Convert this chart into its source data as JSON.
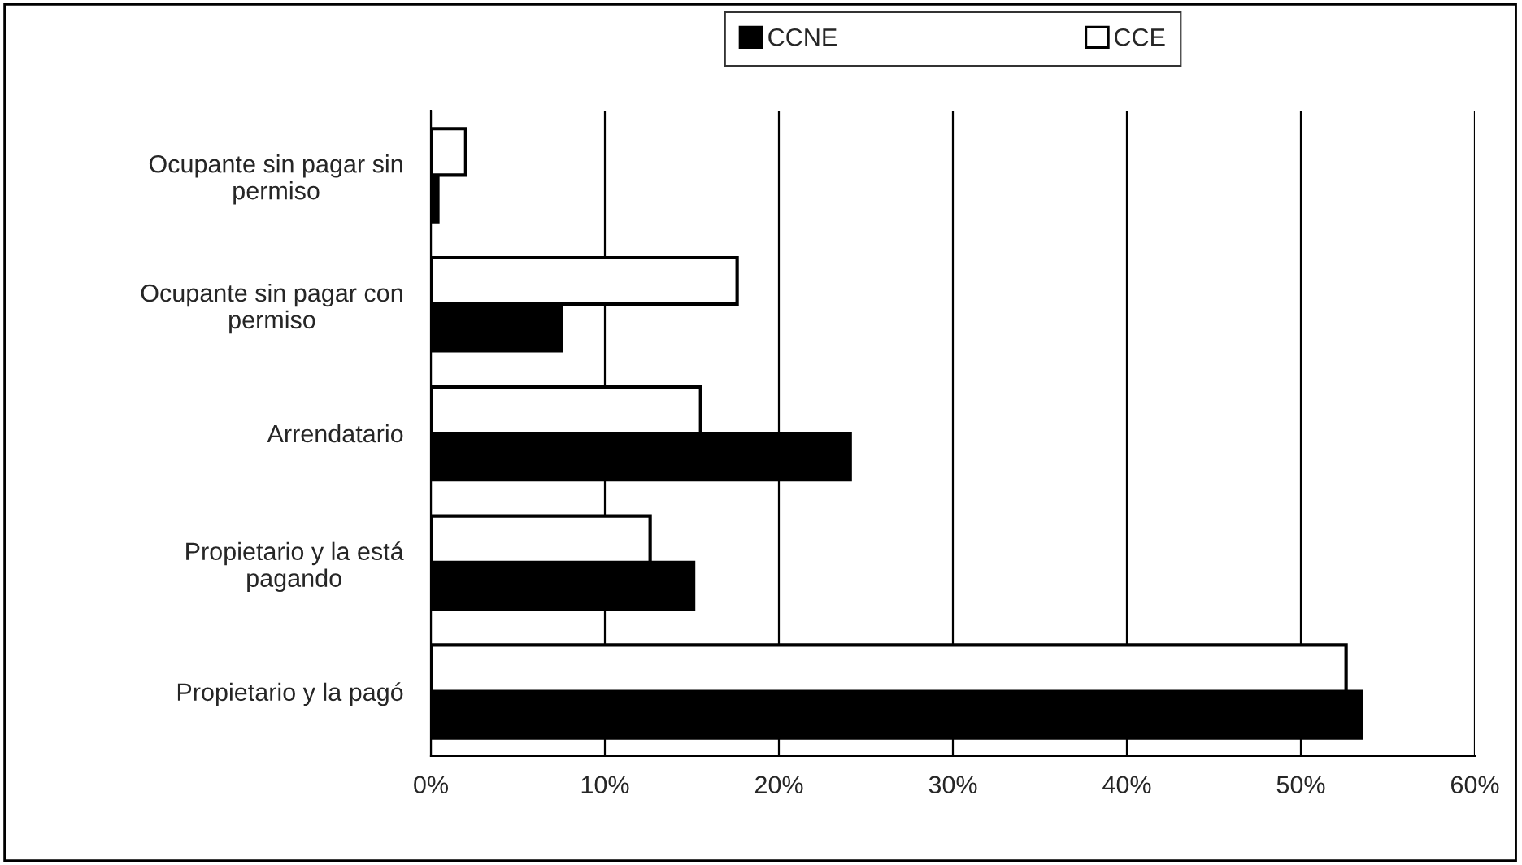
{
  "chart_data": {
    "type": "bar",
    "orientation": "horizontal",
    "categories": [
      "Ocupante sin pagar sin permiso",
      "Ocupante sin pagar con permiso",
      "Arrendatario",
      "Propietario y la está pagando",
      "Propietario y la pagó"
    ],
    "series": [
      {
        "name": "CCNE",
        "color": "#000000",
        "values": [
          0.4,
          7.5,
          24.1,
          15.1,
          53.5
        ]
      },
      {
        "name": "CCE",
        "color": "#ffffff",
        "values": [
          2.0,
          17.6,
          15.5,
          12.6,
          52.6
        ]
      }
    ],
    "xlim": [
      0,
      60
    ],
    "xticks": [
      {
        "value": 0,
        "label": "0%"
      },
      {
        "value": 10,
        "label": "10%"
      },
      {
        "value": 20,
        "label": "20%"
      },
      {
        "value": 30,
        "label": "30%"
      },
      {
        "value": 40,
        "label": "40%"
      },
      {
        "value": 50,
        "label": "50%"
      },
      {
        "value": 60,
        "label": "60%"
      }
    ],
    "grid": "x",
    "legend": "top"
  }
}
